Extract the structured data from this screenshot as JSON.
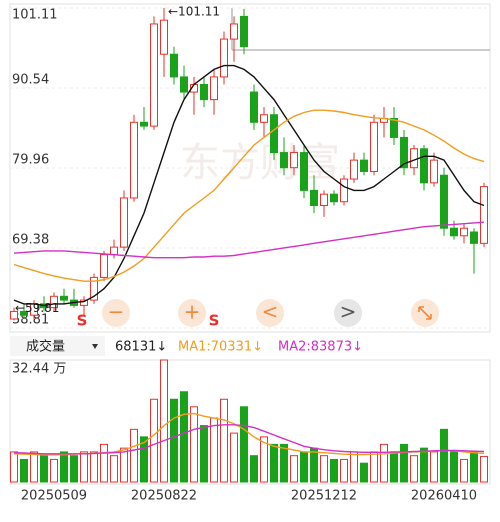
{
  "chart_data": {
    "type": "candlestick",
    "watermark": "东方财富",
    "ylim": [
      58.81,
      101.11
    ],
    "yticks": [
      101.11,
      90.54,
      79.96,
      69.38,
      58.81
    ],
    "high_label": "←101.11",
    "low_label": "←59.81",
    "up_color": "#e8322d",
    "down_color": "#1aa31a",
    "categories": [
      null,
      null,
      null,
      null,
      "20250509",
      null,
      null,
      null,
      null,
      null,
      null,
      null,
      null,
      null,
      null,
      "20250822",
      null,
      null,
      null,
      null,
      null,
      null,
      null,
      null,
      null,
      null,
      null,
      null,
      null,
      null,
      null,
      "20251212",
      null,
      null,
      null,
      null,
      null,
      null,
      null,
      null,
      null,
      null,
      null,
      "20260410",
      null,
      null,
      null,
      null
    ],
    "candles": [
      {
        "o": 60,
        "h": 61.5,
        "l": 59.81,
        "c": 61
      },
      {
        "o": 61,
        "h": 62,
        "l": 60,
        "c": 60.5
      },
      {
        "o": 60.5,
        "h": 62.5,
        "l": 60,
        "c": 62
      },
      {
        "o": 62,
        "h": 63,
        "l": 61,
        "c": 61.5
      },
      {
        "o": 61.5,
        "h": 63.5,
        "l": 61,
        "c": 63
      },
      {
        "o": 63,
        "h": 64,
        "l": 62,
        "c": 62.5
      },
      {
        "o": 62.5,
        "h": 64,
        "l": 61.5,
        "c": 61.8
      },
      {
        "o": 61.8,
        "h": 63,
        "l": 60.5,
        "c": 62.5
      },
      {
        "o": 62.5,
        "h": 66,
        "l": 62,
        "c": 65.5
      },
      {
        "o": 65.5,
        "h": 69,
        "l": 65,
        "c": 68.5
      },
      {
        "o": 68.5,
        "h": 70.5,
        "l": 68,
        "c": 69.5
      },
      {
        "o": 69.5,
        "h": 77,
        "l": 69,
        "c": 76
      },
      {
        "o": 76,
        "h": 87,
        "l": 75.5,
        "c": 86
      },
      {
        "o": 86,
        "h": 88,
        "l": 85,
        "c": 85.5
      },
      {
        "o": 85.5,
        "h": 100,
        "l": 85,
        "c": 99
      },
      {
        "o": 95,
        "h": 101.11,
        "l": 92,
        "c": 99.5
      },
      {
        "o": 95,
        "h": 96,
        "l": 91,
        "c": 92
      },
      {
        "o": 92,
        "h": 93.5,
        "l": 89,
        "c": 90
      },
      {
        "o": 90,
        "h": 92,
        "l": 87,
        "c": 91
      },
      {
        "o": 91,
        "h": 92,
        "l": 88,
        "c": 89
      },
      {
        "o": 89,
        "h": 93,
        "l": 87,
        "c": 92
      },
      {
        "o": 92,
        "h": 98,
        "l": 91,
        "c": 97
      },
      {
        "o": 97,
        "h": 100,
        "l": 94,
        "c": 99
      },
      {
        "o": 100,
        "h": 101,
        "l": 95,
        "c": 96
      },
      {
        "o": 90,
        "h": 91,
        "l": 85,
        "c": 86
      },
      {
        "o": 86,
        "h": 88,
        "l": 84,
        "c": 87
      },
      {
        "o": 87,
        "h": 88,
        "l": 81,
        "c": 82
      },
      {
        "o": 82,
        "h": 84,
        "l": 79,
        "c": 80
      },
      {
        "o": 80,
        "h": 83,
        "l": 79,
        "c": 82
      },
      {
        "o": 82,
        "h": 83,
        "l": 76,
        "c": 77
      },
      {
        "o": 77,
        "h": 79,
        "l": 74,
        "c": 75
      },
      {
        "o": 75,
        "h": 77,
        "l": 73.5,
        "c": 76.5
      },
      {
        "o": 76.5,
        "h": 77,
        "l": 75,
        "c": 75.5
      },
      {
        "o": 75.5,
        "h": 79,
        "l": 75,
        "c": 78.5
      },
      {
        "o": 78.5,
        "h": 82,
        "l": 78,
        "c": 81
      },
      {
        "o": 81,
        "h": 82,
        "l": 79,
        "c": 79.5
      },
      {
        "o": 79.5,
        "h": 87,
        "l": 79,
        "c": 86
      },
      {
        "o": 86,
        "h": 88,
        "l": 84,
        "c": 86.5
      },
      {
        "o": 86.5,
        "h": 88,
        "l": 83,
        "c": 84
      },
      {
        "o": 84,
        "h": 85,
        "l": 79,
        "c": 80
      },
      {
        "o": 80,
        "h": 83,
        "l": 79,
        "c": 82.5
      },
      {
        "o": 82.5,
        "h": 83,
        "l": 77,
        "c": 78
      },
      {
        "o": 78,
        "h": 82,
        "l": 77.5,
        "c": 81
      },
      {
        "o": 79,
        "h": 80,
        "l": 71,
        "c": 72
      },
      {
        "o": 72,
        "h": 73,
        "l": 70.5,
        "c": 71
      },
      {
        "o": 71,
        "h": 72.5,
        "l": 70,
        "c": 72
      },
      {
        "o": 71.5,
        "h": 72,
        "l": 66,
        "c": 70
      },
      {
        "o": 70,
        "h": 78,
        "l": 69.5,
        "c": 77.5
      }
    ],
    "ma_lines": [
      {
        "color": "#111111",
        "values": [
          62.5,
          62,
          62,
          61.8,
          62,
          62,
          62.2,
          62.3,
          63,
          64,
          65.5,
          68,
          71,
          74,
          78,
          82,
          86,
          89,
          91,
          92,
          93,
          93.5,
          93.5,
          93,
          92,
          90.5,
          89,
          87,
          85,
          83,
          81,
          79.5,
          78.5,
          77.5,
          77,
          77,
          77.5,
          78.5,
          79.5,
          80.5,
          81,
          81.5,
          81.5,
          81,
          79,
          77,
          75.5,
          75
        ]
      },
      {
        "color": "#f39c1f",
        "values": [
          67.2,
          66.8,
          66.4,
          66,
          65.7,
          65.4,
          65.2,
          65,
          65,
          65.2,
          65.6,
          66.2,
          67,
          68,
          69.5,
          71,
          72.5,
          74,
          75,
          76,
          77,
          78.5,
          80,
          81.5,
          83,
          84,
          85,
          86,
          86.8,
          87.3,
          87.6,
          87.6,
          87.5,
          87.3,
          87,
          86.8,
          86.6,
          86.5,
          86.3,
          86,
          85.5,
          85,
          84.3,
          83.5,
          82.6,
          81.8,
          81.2,
          80.8
        ]
      },
      {
        "color": "#d42fc8",
        "values": [
          68.7,
          68.8,
          68.9,
          69,
          69,
          69,
          68.9,
          68.8,
          68.7,
          68.6,
          68.5,
          68.4,
          68.3,
          68.2,
          68.1,
          68.1,
          68.1,
          68.1,
          68.2,
          68.2,
          68.3,
          68.3,
          68.4,
          68.6,
          68.8,
          69,
          69.2,
          69.4,
          69.6,
          69.8,
          70,
          70.2,
          70.4,
          70.6,
          70.8,
          71,
          71.2,
          71.4,
          71.6,
          71.8,
          72,
          72.2,
          72.3,
          72.4,
          72.5,
          72.6,
          72.7,
          72.8
        ]
      }
    ],
    "buttons": [
      "S",
      "−",
      "+",
      "S",
      "<",
      ">"
    ],
    "volume": {
      "selector": "成交量",
      "current": "68131↓",
      "ma1_label": "MA1:70331↓",
      "ma2_label": "MA2:83873↓",
      "ylim": [
        0,
        32.44
      ],
      "yticks": [
        {
          "value": 32.44,
          "label": "32.44 万"
        }
      ],
      "values": [
        8,
        6,
        8,
        7,
        6,
        8,
        7,
        8,
        8,
        10,
        7,
        9,
        14,
        12,
        22,
        32.44,
        22,
        24,
        20,
        15,
        17,
        22,
        13,
        20,
        7,
        12,
        10,
        10,
        7,
        8,
        9,
        7,
        6,
        6,
        8,
        5,
        8,
        10,
        8,
        10,
        7,
        9,
        8,
        14,
        8,
        6,
        8,
        6.8
      ],
      "ma_lines": [
        {
          "color": "#f39c1f",
          "values": [
            7.5,
            7.4,
            7.3,
            7.2,
            7.2,
            7.3,
            7.4,
            7.5,
            7.6,
            7.8,
            8,
            8.5,
            9.5,
            10.5,
            12.5,
            15,
            17,
            18,
            18.2,
            17.5,
            17,
            16.5,
            15.5,
            14,
            12,
            10.5,
            9.5,
            9,
            8.5,
            8,
            8,
            7.8,
            7.6,
            7.4,
            7.3,
            7.3,
            7.4,
            7.5,
            7.7,
            7.9,
            8,
            8.1,
            8.2,
            8.4,
            8.3,
            8,
            7.8,
            7.6
          ]
        },
        {
          "color": "#d42fc8",
          "values": [
            7.8,
            7.7,
            7.6,
            7.5,
            7.5,
            7.5,
            7.5,
            7.5,
            7.6,
            7.7,
            7.8,
            8,
            8.5,
            9,
            10,
            11,
            12,
            13,
            14,
            14.5,
            15,
            15.2,
            15.2,
            15,
            14.5,
            13.5,
            12.5,
            11.5,
            10.5,
            9.5,
            9,
            8.6,
            8.3,
            8.1,
            8,
            7.9,
            7.9,
            7.9,
            8,
            8,
            8.1,
            8.2,
            8.3,
            8.4,
            8.4,
            8.3,
            8.2,
            8.1
          ]
        }
      ]
    }
  }
}
